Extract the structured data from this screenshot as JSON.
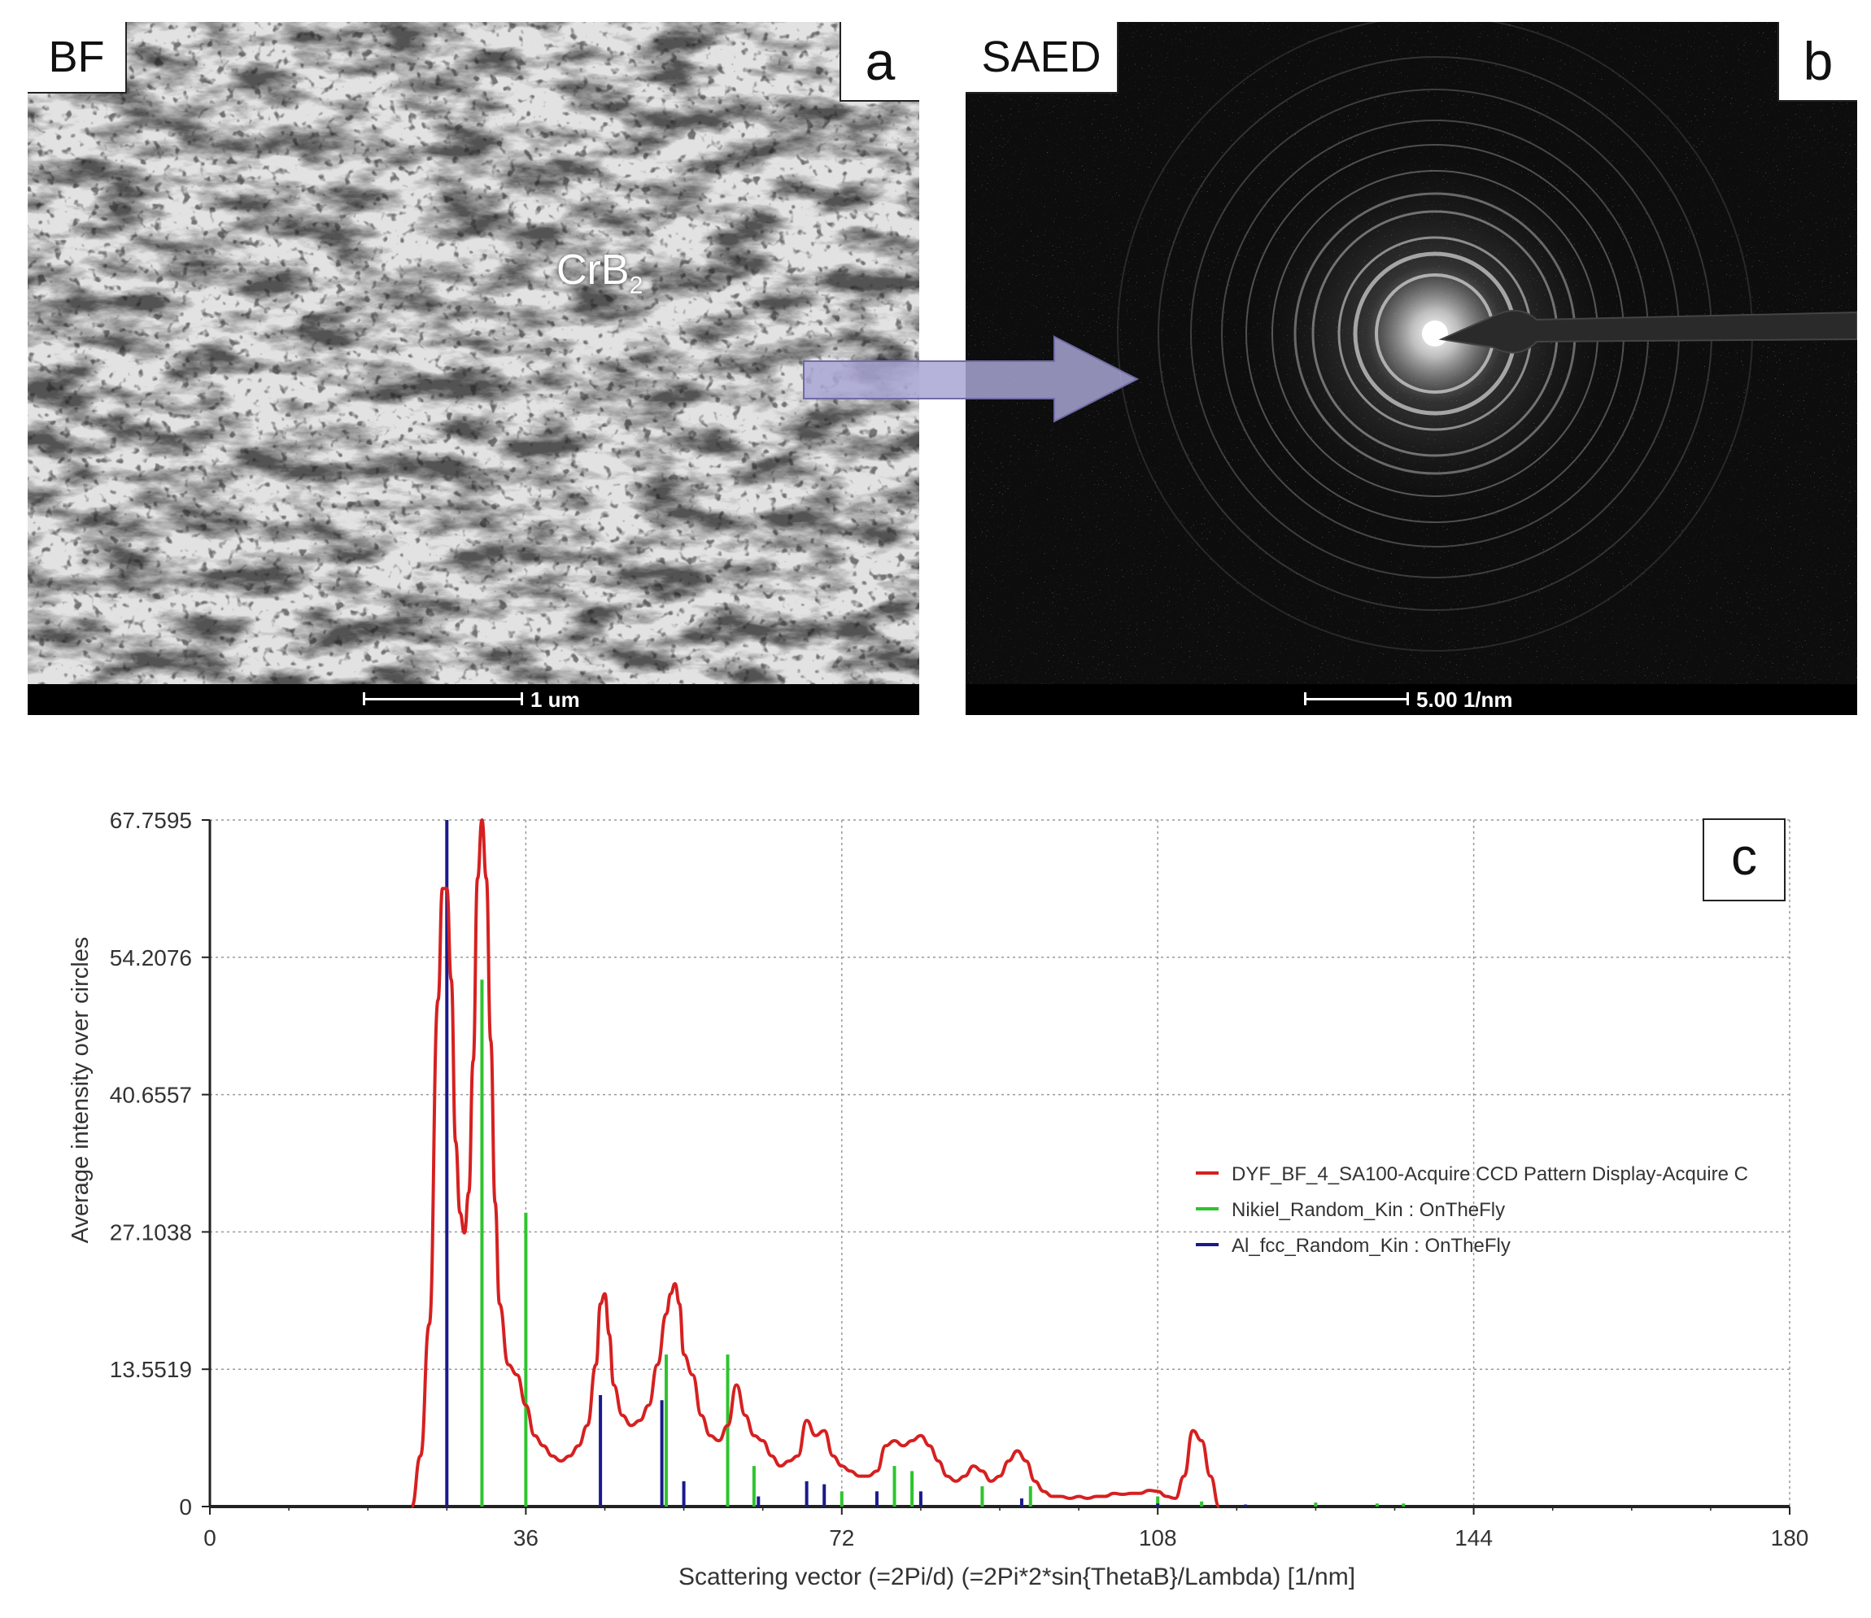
{
  "panel_a": {
    "tag": "BF",
    "letter": "a",
    "phase_label_main": "CrB",
    "phase_label_sub": "2",
    "scalebar_text": "1 um"
  },
  "panel_b": {
    "tag": "SAED",
    "letter": "b",
    "scalebar_text": "5.00 1/nm"
  },
  "panel_c": {
    "letter": "c"
  },
  "colors": {
    "measured": "#d62020",
    "nickel": "#2ec42e",
    "aluminum": "#1a1a8c"
  },
  "chart_data": {
    "type": "line",
    "title": "",
    "xlabel": "Scattering vector (=2Pi/d) (=2Pi*2*sin{ThetaB}/Lambda) [1/nm]",
    "ylabel": "Average intensity over circles",
    "xlim": [
      0,
      180
    ],
    "ylim": [
      0,
      67.7595
    ],
    "xticks": [
      "0",
      "36",
      "72",
      "108",
      "144",
      "180"
    ],
    "yticks": [
      "0",
      "13.5519",
      "27.1038",
      "40.6557",
      "54.2076",
      "67.7595"
    ],
    "grid": true,
    "legend_position": "right",
    "series": [
      {
        "name": "DYF_BF_4_SA100-Acquire CCD Pattern Display-Acquire C",
        "kind": "line",
        "color": "#d62020",
        "x": [
          23,
          24,
          25,
          26,
          26.5,
          27,
          27.5,
          28,
          28.5,
          29,
          29.5,
          30,
          30.5,
          31,
          31.5,
          32,
          32.5,
          33,
          34,
          35,
          36,
          37,
          38,
          39,
          40,
          41,
          42,
          43,
          44,
          44.5,
          45,
          45.5,
          46,
          47,
          48,
          49,
          50,
          51,
          52,
          52.5,
          53,
          53.5,
          54,
          55,
          56,
          57,
          58,
          59,
          60,
          61,
          62,
          63,
          64,
          65,
          66,
          67,
          68,
          69,
          70,
          71,
          72,
          73,
          74,
          75,
          76,
          77,
          78,
          79,
          80,
          81,
          82,
          83,
          84,
          85,
          86,
          87,
          88,
          89,
          90,
          91,
          92,
          93,
          94,
          95,
          96,
          97,
          98,
          99,
          100,
          101,
          102,
          103,
          104,
          105,
          106,
          107,
          108,
          109,
          110,
          111,
          112,
          113,
          114,
          115
        ],
        "y": [
          0,
          5,
          18,
          50,
          61,
          61,
          52,
          36,
          29,
          27,
          31,
          44,
          62,
          68,
          62,
          46,
          30,
          20,
          14,
          13,
          10,
          7,
          6,
          5,
          4.5,
          5,
          6,
          8,
          14,
          20,
          21,
          17,
          12,
          9,
          8,
          8.5,
          10,
          14,
          19,
          21,
          22,
          20,
          15,
          13,
          9,
          7,
          6.5,
          8,
          12,
          9,
          7,
          6.5,
          5,
          4,
          4.5,
          5,
          8.5,
          7,
          7.5,
          5,
          4,
          3.5,
          3,
          3,
          3.5,
          6,
          6.5,
          6,
          6.5,
          7,
          6,
          4.5,
          3,
          2.5,
          3,
          4,
          3.5,
          2.5,
          3,
          4.5,
          5.5,
          4.5,
          2.5,
          1.5,
          1,
          1,
          0.8,
          1,
          0.8,
          1,
          1,
          1.3,
          1.2,
          1.3,
          1.3,
          1.6,
          1.5,
          1,
          0.8,
          3,
          7.5,
          6.5,
          3,
          0
        ]
      },
      {
        "name": "Nikiel_Random_Kin : OnTheFly",
        "kind": "sticks",
        "color": "#2ec42e",
        "x": [
          31,
          36,
          52,
          59,
          62,
          72,
          78,
          80,
          88,
          93.5,
          108,
          113,
          126,
          133,
          136
        ],
        "y": [
          52,
          29,
          15,
          15,
          4,
          1.5,
          4,
          3.5,
          2,
          2,
          1,
          0.5,
          0.4,
          0.3,
          0.3
        ]
      },
      {
        "name": "Al_fcc_Random_Kin : OnTheFly",
        "kind": "sticks",
        "color": "#1a1a8c",
        "x": [
          27,
          44.5,
          51.5,
          54,
          62.5,
          68,
          70,
          76,
          81,
          92.5,
          108,
          118
        ],
        "y": [
          67.76,
          11,
          10.5,
          2.5,
          1,
          2.5,
          2.2,
          1.5,
          1.5,
          0.8,
          0.3,
          0.2
        ]
      }
    ]
  }
}
